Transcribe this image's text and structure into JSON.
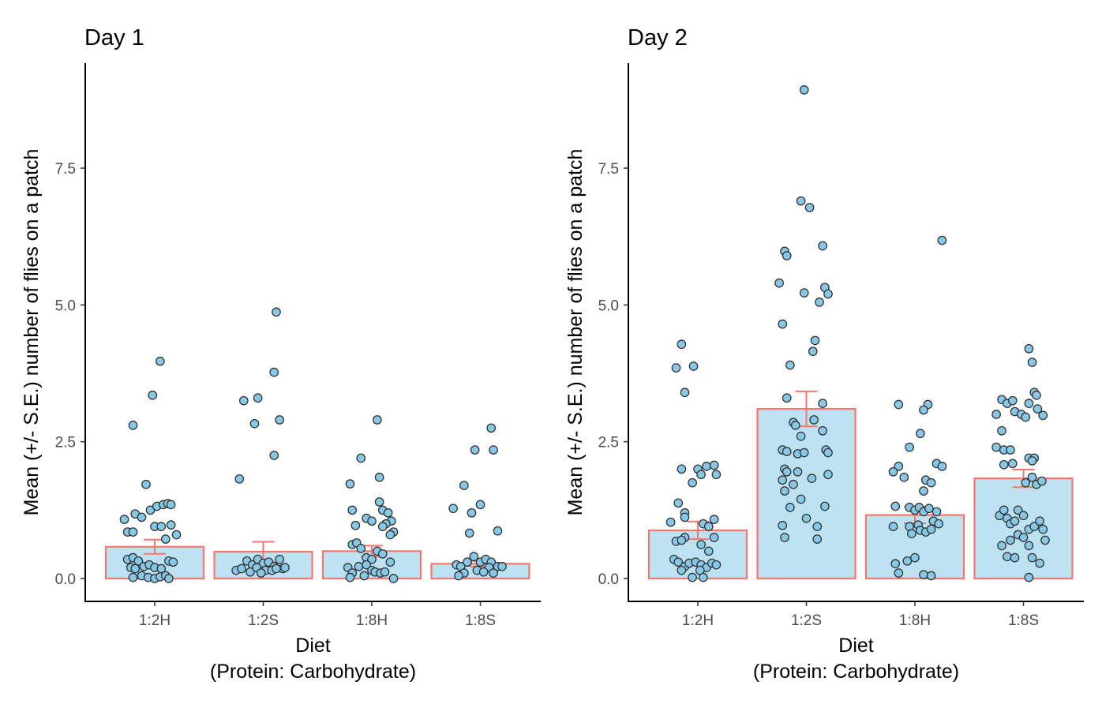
{
  "chart_data": [
    {
      "type": "bar",
      "title": "Day 1",
      "xlabel": "Diet",
      "xlabel_sub": "(Protein: Carbohydrate)",
      "ylabel": "Mean (+/- S.E.) number of flies on a patch",
      "categories": [
        "1:2H",
        "1:2S",
        "1:8H",
        "1:8S"
      ],
      "values": [
        0.58,
        0.49,
        0.5,
        0.27
      ],
      "se": [
        0.13,
        0.18,
        0.1,
        0.05
      ],
      "ylim": [
        -0.4,
        9.3
      ],
      "yticks": [
        0.0,
        2.5,
        5.0,
        7.5
      ],
      "ytick_labels": [
        "0.0",
        "2.5",
        "5.0",
        "7.5"
      ],
      "grid": false,
      "points": [
        [
          [
            0.05,
            3.97
          ],
          [
            -0.2,
            2.8
          ],
          [
            -0.02,
            3.35
          ],
          [
            -0.08,
            1.72
          ],
          [
            -0.28,
            1.08
          ],
          [
            -0.25,
            0.85
          ],
          [
            -0.2,
            0.85
          ],
          [
            -0.18,
            1.18
          ],
          [
            -0.12,
            1.12
          ],
          [
            -0.04,
            1.25
          ],
          [
            0.02,
            1.32
          ],
          [
            0.08,
            1.35
          ],
          [
            0.12,
            1.37
          ],
          [
            0.15,
            1.35
          ],
          [
            0.0,
            0.95
          ],
          [
            0.06,
            0.95
          ],
          [
            0.15,
            0.98
          ],
          [
            0.2,
            0.8
          ],
          [
            0.1,
            0.72
          ],
          [
            -0.25,
            0.35
          ],
          [
            -0.2,
            0.38
          ],
          [
            -0.15,
            0.32
          ],
          [
            -0.22,
            0.2
          ],
          [
            -0.18,
            0.18
          ],
          [
            -0.1,
            0.22
          ],
          [
            -0.05,
            0.25
          ],
          [
            0.0,
            0.2
          ],
          [
            0.06,
            0.18
          ],
          [
            0.13,
            0.32
          ],
          [
            0.17,
            0.3
          ],
          [
            -0.12,
            0.05
          ],
          [
            -0.06,
            0.02
          ],
          [
            0.0,
            0.0
          ],
          [
            0.05,
            0.03
          ],
          [
            0.1,
            0.05
          ],
          [
            -0.2,
            0.02
          ],
          [
            0.13,
            0.0
          ]
        ],
        [
          [
            0.12,
            4.87
          ],
          [
            0.1,
            3.77
          ],
          [
            -0.18,
            3.25
          ],
          [
            -0.05,
            3.3
          ],
          [
            -0.08,
            2.83
          ],
          [
            0.15,
            2.9
          ],
          [
            0.1,
            2.25
          ],
          [
            -0.22,
            1.82
          ],
          [
            -0.15,
            0.32
          ],
          [
            -0.1,
            0.25
          ],
          [
            -0.05,
            0.35
          ],
          [
            0.0,
            0.28
          ],
          [
            0.05,
            0.3
          ],
          [
            0.1,
            0.22
          ],
          [
            0.15,
            0.35
          ],
          [
            0.18,
            0.18
          ],
          [
            -0.25,
            0.15
          ],
          [
            -0.2,
            0.18
          ],
          [
            -0.12,
            0.12
          ],
          [
            -0.06,
            0.2
          ],
          [
            0.02,
            0.15
          ],
          [
            0.08,
            0.15
          ],
          [
            0.12,
            0.18
          ],
          [
            0.2,
            0.2
          ],
          [
            -0.02,
            0.1
          ]
        ],
        [
          [
            0.05,
            2.9
          ],
          [
            -0.1,
            2.2
          ],
          [
            0.07,
            1.85
          ],
          [
            -0.2,
            1.73
          ],
          [
            -0.18,
            1.25
          ],
          [
            -0.05,
            1.1
          ],
          [
            0.0,
            1.05
          ],
          [
            0.07,
            1.4
          ],
          [
            0.1,
            1.25
          ],
          [
            0.15,
            1.2
          ],
          [
            0.18,
            1.05
          ],
          [
            0.13,
            1.0
          ],
          [
            0.2,
            0.85
          ],
          [
            0.17,
            0.8
          ],
          [
            0.1,
            0.95
          ],
          [
            -0.15,
            0.97
          ],
          [
            -0.18,
            0.62
          ],
          [
            -0.14,
            0.65
          ],
          [
            -0.1,
            0.55
          ],
          [
            -0.05,
            0.38
          ],
          [
            0.0,
            0.35
          ],
          [
            0.05,
            0.5
          ],
          [
            0.1,
            0.45
          ],
          [
            -0.22,
            0.2
          ],
          [
            -0.18,
            0.1
          ],
          [
            -0.12,
            0.22
          ],
          [
            -0.05,
            0.25
          ],
          [
            0.0,
            0.15
          ],
          [
            0.03,
            0.12
          ],
          [
            0.08,
            0.1
          ],
          [
            0.12,
            0.12
          ],
          [
            0.17,
            0.3
          ],
          [
            -0.2,
            0.02
          ],
          [
            -0.07,
            0.05
          ],
          [
            0.2,
            0.0
          ]
        ],
        [
          [
            0.1,
            2.75
          ],
          [
            -0.05,
            2.35
          ],
          [
            0.12,
            2.35
          ],
          [
            -0.15,
            1.7
          ],
          [
            -0.25,
            1.28
          ],
          [
            0.0,
            1.35
          ],
          [
            -0.08,
            1.2
          ],
          [
            0.16,
            0.87
          ],
          [
            -0.1,
            0.83
          ],
          [
            -0.22,
            0.25
          ],
          [
            -0.18,
            0.22
          ],
          [
            -0.12,
            0.3
          ],
          [
            -0.06,
            0.4
          ],
          [
            0.0,
            0.3
          ],
          [
            0.05,
            0.35
          ],
          [
            0.1,
            0.3
          ],
          [
            0.16,
            0.22
          ],
          [
            0.2,
            0.22
          ],
          [
            0.08,
            0.2
          ],
          [
            -0.15,
            0.1
          ],
          [
            -0.03,
            0.15
          ],
          [
            0.03,
            0.12
          ],
          [
            0.12,
            0.1
          ],
          [
            -0.2,
            0.05
          ]
        ]
      ]
    },
    {
      "type": "bar",
      "title": "Day 2",
      "xlabel": "Diet",
      "xlabel_sub": "(Protein: Carbohydrate)",
      "ylabel": "Mean (+/- S.E.) number of flies on a patch",
      "categories": [
        "1:2H",
        "1:2S",
        "1:8H",
        "1:8S"
      ],
      "values": [
        0.88,
        3.1,
        1.16,
        1.83
      ],
      "se": [
        0.16,
        0.32,
        0.15,
        0.16
      ],
      "ylim": [
        -0.4,
        9.3
      ],
      "yticks": [
        0.0,
        2.5,
        5.0,
        7.5
      ],
      "ytick_labels": [
        "0.0",
        "2.5",
        "5.0",
        "7.5"
      ],
      "grid": false,
      "points": [
        [
          [
            -0.15,
            4.28
          ],
          [
            -0.2,
            3.85
          ],
          [
            -0.04,
            3.88
          ],
          [
            -0.12,
            3.4
          ],
          [
            -0.15,
            2.0
          ],
          [
            0.0,
            2.0
          ],
          [
            0.03,
            1.9
          ],
          [
            0.08,
            2.05
          ],
          [
            0.15,
            2.07
          ],
          [
            0.17,
            1.9
          ],
          [
            -0.05,
            1.75
          ],
          [
            -0.18,
            1.38
          ],
          [
            -0.25,
            1.03
          ],
          [
            -0.12,
            1.2
          ],
          [
            -0.12,
            1.12
          ],
          [
            0.05,
            1.0
          ],
          [
            0.15,
            1.08
          ],
          [
            0.1,
            0.95
          ],
          [
            -0.12,
            0.75
          ],
          [
            -0.2,
            0.68
          ],
          [
            -0.15,
            0.7
          ],
          [
            0.03,
            0.62
          ],
          [
            0.15,
            0.75
          ],
          [
            0.1,
            0.5
          ],
          [
            -0.22,
            0.35
          ],
          [
            -0.18,
            0.3
          ],
          [
            -0.12,
            0.22
          ],
          [
            -0.08,
            0.28
          ],
          [
            -0.02,
            0.3
          ],
          [
            0.03,
            0.25
          ],
          [
            0.08,
            0.2
          ],
          [
            0.13,
            0.28
          ],
          [
            0.17,
            0.25
          ],
          [
            -0.15,
            0.15
          ],
          [
            0.02,
            0.15
          ],
          [
            -0.05,
            0.02
          ],
          [
            0.05,
            0.02
          ]
        ],
        [
          [
            -0.02,
            8.93
          ],
          [
            -0.05,
            6.9
          ],
          [
            0.03,
            6.78
          ],
          [
            -0.2,
            5.98
          ],
          [
            -0.18,
            5.9
          ],
          [
            0.15,
            6.08
          ],
          [
            -0.25,
            5.4
          ],
          [
            -0.02,
            5.22
          ],
          [
            0.17,
            5.32
          ],
          [
            0.12,
            5.05
          ],
          [
            0.2,
            5.2
          ],
          [
            -0.22,
            4.65
          ],
          [
            0.08,
            4.35
          ],
          [
            0.06,
            4.15
          ],
          [
            -0.15,
            3.9
          ],
          [
            -0.18,
            3.3
          ],
          [
            0.15,
            3.2
          ],
          [
            -0.12,
            2.85
          ],
          [
            -0.1,
            2.8
          ],
          [
            0.07,
            2.9
          ],
          [
            -0.05,
            2.6
          ],
          [
            0.15,
            2.7
          ],
          [
            -0.22,
            2.35
          ],
          [
            -0.18,
            2.32
          ],
          [
            -0.08,
            2.28
          ],
          [
            -0.02,
            2.3
          ],
          [
            0.18,
            2.35
          ],
          [
            0.2,
            2.3
          ],
          [
            -0.2,
            2.0
          ],
          [
            -0.18,
            1.95
          ],
          [
            -0.08,
            1.95
          ],
          [
            -0.22,
            1.8
          ],
          [
            -0.12,
            1.72
          ],
          [
            -0.2,
            1.6
          ],
          [
            0.05,
            1.83
          ],
          [
            0.2,
            1.9
          ],
          [
            -0.05,
            1.45
          ],
          [
            -0.15,
            1.3
          ],
          [
            0.17,
            1.32
          ],
          [
            0.0,
            1.1
          ],
          [
            -0.22,
            0.97
          ],
          [
            0.1,
            0.95
          ],
          [
            -0.2,
            0.75
          ],
          [
            0.1,
            0.72
          ]
        ],
        [
          [
            0.25,
            6.18
          ],
          [
            -0.15,
            3.18
          ],
          [
            0.12,
            3.18
          ],
          [
            0.08,
            3.08
          ],
          [
            0.05,
            2.65
          ],
          [
            -0.05,
            2.4
          ],
          [
            -0.15,
            2.05
          ],
          [
            -0.2,
            1.95
          ],
          [
            0.2,
            2.1
          ],
          [
            0.25,
            2.05
          ],
          [
            -0.1,
            1.85
          ],
          [
            0.1,
            1.8
          ],
          [
            0.15,
            1.75
          ],
          [
            0.08,
            1.6
          ],
          [
            -0.18,
            1.32
          ],
          [
            -0.05,
            1.3
          ],
          [
            0.0,
            1.25
          ],
          [
            0.04,
            1.3
          ],
          [
            0.08,
            1.22
          ],
          [
            0.13,
            1.28
          ],
          [
            0.2,
            1.22
          ],
          [
            0.17,
            1.05
          ],
          [
            0.22,
            1.0
          ],
          [
            -0.2,
            0.95
          ],
          [
            -0.05,
            0.95
          ],
          [
            0.03,
            0.98
          ],
          [
            0.05,
            0.88
          ],
          [
            0.1,
            0.85
          ],
          [
            0.15,
            0.9
          ],
          [
            -0.03,
            0.82
          ],
          [
            -0.18,
            0.27
          ],
          [
            -0.07,
            0.32
          ],
          [
            0.0,
            0.38
          ],
          [
            -0.15,
            0.1
          ],
          [
            0.08,
            0.07
          ],
          [
            0.15,
            0.05
          ]
        ],
        [
          [
            0.05,
            4.2
          ],
          [
            0.08,
            3.95
          ],
          [
            -0.2,
            3.27
          ],
          [
            -0.15,
            3.2
          ],
          [
            -0.1,
            3.25
          ],
          [
            0.05,
            3.2
          ],
          [
            0.1,
            3.4
          ],
          [
            0.12,
            3.35
          ],
          [
            -0.25,
            3.0
          ],
          [
            -0.08,
            3.05
          ],
          [
            -0.02,
            3.0
          ],
          [
            0.02,
            2.95
          ],
          [
            0.13,
            3.1
          ],
          [
            0.18,
            2.98
          ],
          [
            -0.2,
            2.7
          ],
          [
            -0.25,
            2.4
          ],
          [
            -0.18,
            2.35
          ],
          [
            -0.12,
            2.35
          ],
          [
            0.05,
            2.2
          ],
          [
            0.1,
            2.2
          ],
          [
            0.08,
            2.15
          ],
          [
            -0.1,
            2.1
          ],
          [
            -0.18,
            2.08
          ],
          [
            0.02,
            1.75
          ],
          [
            0.08,
            1.85
          ],
          [
            0.12,
            1.72
          ],
          [
            0.17,
            1.78
          ],
          [
            -0.22,
            1.15
          ],
          [
            -0.18,
            1.25
          ],
          [
            -0.15,
            1.1
          ],
          [
            -0.12,
            1.0
          ],
          [
            -0.08,
            1.05
          ],
          [
            -0.05,
            1.25
          ],
          [
            0.0,
            1.15
          ],
          [
            0.05,
            0.9
          ],
          [
            0.1,
            0.95
          ],
          [
            0.15,
            1.05
          ],
          [
            0.18,
            0.9
          ],
          [
            0.2,
            0.7
          ],
          [
            -0.2,
            0.6
          ],
          [
            -0.12,
            0.7
          ],
          [
            -0.05,
            0.8
          ],
          [
            0.0,
            0.75
          ],
          [
            0.05,
            0.6
          ],
          [
            -0.15,
            0.4
          ],
          [
            -0.08,
            0.38
          ],
          [
            0.08,
            0.38
          ],
          [
            0.15,
            0.28
          ],
          [
            0.05,
            0.02
          ]
        ]
      ]
    }
  ]
}
